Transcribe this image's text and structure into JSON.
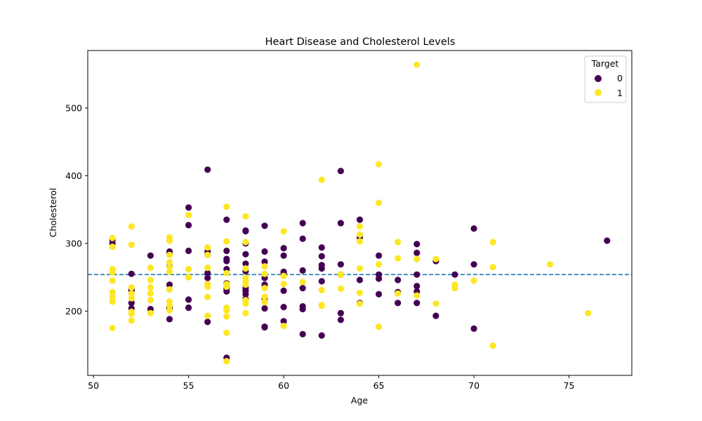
{
  "chart_data": {
    "type": "scatter",
    "title": "Heart Disease and Cholesterol Levels",
    "xlabel": "Age",
    "ylabel": "Cholesterol",
    "xlim": [
      49.7,
      78.3
    ],
    "ylim": [
      105,
      585
    ],
    "xticks": [
      50,
      55,
      60,
      65,
      70,
      75
    ],
    "yticks": [
      200,
      300,
      400,
      500
    ],
    "grid": false,
    "legend": {
      "title": "Target",
      "placement": "top-right",
      "entries": [
        "0",
        "1"
      ]
    },
    "colors": {
      "0": "#440154",
      "1": "#fde725",
      "reference_line": "#1f77b4"
    },
    "reference_line": {
      "y": 254,
      "style": "dashed"
    },
    "series": [
      {
        "name": "0",
        "points": [
          [
            51,
            305
          ],
          [
            51,
            300
          ],
          [
            52,
            255
          ],
          [
            52,
            233
          ],
          [
            52,
            230
          ],
          [
            52,
            212
          ],
          [
            52,
            204
          ],
          [
            53,
            282
          ],
          [
            53,
            203
          ],
          [
            54,
            288
          ],
          [
            54,
            284
          ],
          [
            54,
            266
          ],
          [
            54,
            239
          ],
          [
            54,
            207
          ],
          [
            54,
            204
          ],
          [
            54,
            188
          ],
          [
            55,
            353
          ],
          [
            55,
            327
          ],
          [
            55,
            289
          ],
          [
            55,
            217
          ],
          [
            55,
            205
          ],
          [
            56,
            409
          ],
          [
            56,
            288
          ],
          [
            56,
            283
          ],
          [
            56,
            256
          ],
          [
            56,
            249
          ],
          [
            56,
            184
          ],
          [
            57,
            335
          ],
          [
            57,
            289
          ],
          [
            57,
            277
          ],
          [
            57,
            274
          ],
          [
            57,
            262
          ],
          [
            57,
            241
          ],
          [
            57,
            236
          ],
          [
            57,
            233
          ],
          [
            57,
            229
          ],
          [
            57,
            131
          ],
          [
            58,
            319
          ],
          [
            58,
            318
          ],
          [
            58,
            300
          ],
          [
            58,
            284
          ],
          [
            58,
            270
          ],
          [
            58,
            259
          ],
          [
            58,
            234
          ],
          [
            58,
            230
          ],
          [
            58,
            225
          ],
          [
            58,
            218
          ],
          [
            59,
            326
          ],
          [
            59,
            288
          ],
          [
            59,
            273
          ],
          [
            59,
            249
          ],
          [
            59,
            239
          ],
          [
            59,
            219
          ],
          [
            59,
            204
          ],
          [
            59,
            177
          ],
          [
            59,
            176
          ],
          [
            60,
            293
          ],
          [
            60,
            282
          ],
          [
            60,
            258
          ],
          [
            60,
            255
          ],
          [
            60,
            230
          ],
          [
            60,
            206
          ],
          [
            60,
            185
          ],
          [
            61,
            330
          ],
          [
            61,
            307
          ],
          [
            61,
            260
          ],
          [
            61,
            234
          ],
          [
            61,
            207
          ],
          [
            61,
            203
          ],
          [
            61,
            166
          ],
          [
            62,
            294
          ],
          [
            62,
            281
          ],
          [
            62,
            268
          ],
          [
            62,
            263
          ],
          [
            62,
            244
          ],
          [
            62,
            164
          ],
          [
            63,
            407
          ],
          [
            63,
            330
          ],
          [
            63,
            269
          ],
          [
            63,
            254
          ],
          [
            63,
            197
          ],
          [
            63,
            187
          ],
          [
            64,
            335
          ],
          [
            64,
            309
          ],
          [
            64,
            246
          ],
          [
            64,
            212
          ],
          [
            65,
            282
          ],
          [
            65,
            254
          ],
          [
            65,
            248
          ],
          [
            65,
            225
          ],
          [
            66,
            246
          ],
          [
            66,
            228
          ],
          [
            66,
            212
          ],
          [
            67,
            299
          ],
          [
            67,
            286
          ],
          [
            67,
            254
          ],
          [
            67,
            237
          ],
          [
            67,
            229
          ],
          [
            67,
            212
          ],
          [
            68,
            274
          ],
          [
            68,
            193
          ],
          [
            69,
            254
          ],
          [
            70,
            322
          ],
          [
            70,
            269
          ],
          [
            70,
            174
          ],
          [
            77,
            304
          ]
        ]
      },
      {
        "name": "1",
        "points": [
          [
            51,
            308
          ],
          [
            51,
            295
          ],
          [
            51,
            262
          ],
          [
            51,
            257
          ],
          [
            51,
            245
          ],
          [
            51,
            228
          ],
          [
            51,
            221
          ],
          [
            51,
            214
          ],
          [
            51,
            175
          ],
          [
            52,
            325
          ],
          [
            52,
            298
          ],
          [
            52,
            235
          ],
          [
            52,
            226
          ],
          [
            52,
            219
          ],
          [
            52,
            199
          ],
          [
            52,
            196
          ],
          [
            52,
            186
          ],
          [
            53,
            264
          ],
          [
            53,
            246
          ],
          [
            53,
            235
          ],
          [
            53,
            226
          ],
          [
            53,
            216
          ],
          [
            53,
            197
          ],
          [
            54,
            309
          ],
          [
            54,
            304
          ],
          [
            54,
            283
          ],
          [
            54,
            272
          ],
          [
            54,
            265
          ],
          [
            54,
            258
          ],
          [
            54,
            232
          ],
          [
            54,
            214
          ],
          [
            54,
            208
          ],
          [
            54,
            201
          ],
          [
            55,
            342
          ],
          [
            55,
            262
          ],
          [
            55,
            250
          ],
          [
            56,
            294
          ],
          [
            56,
            283
          ],
          [
            56,
            264
          ],
          [
            56,
            240
          ],
          [
            56,
            236
          ],
          [
            56,
            221
          ],
          [
            56,
            193
          ],
          [
            57,
            354
          ],
          [
            57,
            303
          ],
          [
            57,
            256
          ],
          [
            57,
            240
          ],
          [
            57,
            236
          ],
          [
            57,
            205
          ],
          [
            57,
            201
          ],
          [
            57,
            192
          ],
          [
            57,
            168
          ],
          [
            57,
            126
          ],
          [
            58,
            340
          ],
          [
            58,
            302
          ],
          [
            58,
            263
          ],
          [
            58,
            249
          ],
          [
            58,
            244
          ],
          [
            58,
            239
          ],
          [
            58,
            216
          ],
          [
            58,
            211
          ],
          [
            58,
            197
          ],
          [
            59,
            266
          ],
          [
            59,
            255
          ],
          [
            59,
            234
          ],
          [
            59,
            221
          ],
          [
            59,
            213
          ],
          [
            60,
            318
          ],
          [
            60,
            252
          ],
          [
            60,
            240
          ],
          [
            60,
            178
          ],
          [
            61,
            243
          ],
          [
            62,
            394
          ],
          [
            62,
            231
          ],
          [
            62,
            209
          ],
          [
            62,
            208
          ],
          [
            63,
            254
          ],
          [
            63,
            233
          ],
          [
            64,
            325
          ],
          [
            64,
            313
          ],
          [
            64,
            303
          ],
          [
            64,
            263
          ],
          [
            64,
            227
          ],
          [
            64,
            211
          ],
          [
            65,
            417
          ],
          [
            65,
            360
          ],
          [
            65,
            269
          ],
          [
            65,
            177
          ],
          [
            66,
            302
          ],
          [
            66,
            278
          ],
          [
            66,
            226
          ],
          [
            67,
            564
          ],
          [
            67,
            277
          ],
          [
            67,
            223
          ],
          [
            68,
            277
          ],
          [
            68,
            211
          ],
          [
            69,
            239
          ],
          [
            69,
            234
          ],
          [
            70,
            245
          ],
          [
            71,
            302
          ],
          [
            71,
            265
          ],
          [
            71,
            149
          ],
          [
            74,
            269
          ],
          [
            76,
            197
          ]
        ]
      }
    ]
  }
}
